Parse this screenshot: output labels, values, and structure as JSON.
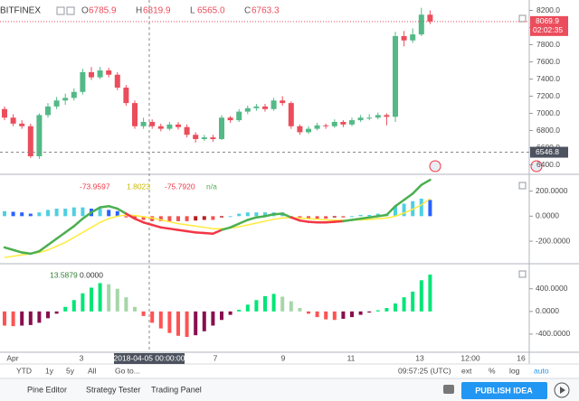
{
  "header": {
    "symbol": "BITFINEX",
    "ohlc": [
      {
        "label": "O",
        "value": "6785.9"
      },
      {
        "label": "H",
        "value": "6819.9"
      },
      {
        "label": "L",
        "value": "6565.0"
      },
      {
        "label": "C",
        "value": "6763.3"
      }
    ]
  },
  "price_chart": {
    "ylim": [
      6300,
      8300
    ],
    "yticks": [
      {
        "value": 8200,
        "label": "8200.0"
      },
      {
        "value": 8000,
        "label": "8000.0"
      },
      {
        "value": 7800,
        "label": "7800.0"
      },
      {
        "value": 7600,
        "label": "7600.0"
      },
      {
        "value": 7400,
        "label": "7400.0"
      },
      {
        "value": 7200,
        "label": "7200.0"
      },
      {
        "value": 7000,
        "label": "7000.0"
      },
      {
        "value": 6800,
        "label": "6800.0"
      },
      {
        "value": 6600,
        "label": "6600.0"
      },
      {
        "value": 6400,
        "label": "6400.0"
      }
    ],
    "up_color": "#53b987",
    "down_color": "#eb4d5c",
    "candles": [
      [
        7050,
        7080,
        6920,
        6950
      ],
      [
        6950,
        6990,
        6850,
        6880
      ],
      [
        6880,
        6920,
        6820,
        6850
      ],
      [
        6850,
        6880,
        6480,
        6500
      ],
      [
        6500,
        7000,
        6470,
        6980
      ],
      [
        6980,
        7120,
        6950,
        7080
      ],
      [
        7080,
        7190,
        7050,
        7150
      ],
      [
        7150,
        7230,
        7100,
        7180
      ],
      [
        7180,
        7290,
        7150,
        7250
      ],
      [
        7250,
        7520,
        7220,
        7480
      ],
      [
        7480,
        7540,
        7390,
        7420
      ],
      [
        7420,
        7540,
        7400,
        7500
      ],
      [
        7500,
        7530,
        7420,
        7450
      ],
      [
        7450,
        7480,
        7270,
        7300
      ],
      [
        7300,
        7330,
        7090,
        7120
      ],
      [
        7120,
        7150,
        6820,
        6850
      ],
      [
        6850,
        6950,
        6820,
        6900
      ],
      [
        6900,
        6930,
        6820,
        6850
      ],
      [
        6850,
        6880,
        6790,
        6820
      ],
      [
        6820,
        6900,
        6800,
        6870
      ],
      [
        6870,
        6900,
        6810,
        6840
      ],
      [
        6840,
        6870,
        6720,
        6750
      ],
      [
        6750,
        6780,
        6660,
        6700
      ],
      [
        6700,
        6750,
        6680,
        6720
      ],
      [
        6720,
        6750,
        6670,
        6700
      ],
      [
        6700,
        6980,
        6690,
        6950
      ],
      [
        6950,
        6970,
        6890,
        6920
      ],
      [
        6920,
        7050,
        6900,
        7020
      ],
      [
        7020,
        7090,
        6990,
        7060
      ],
      [
        7060,
        7110,
        7030,
        7080
      ],
      [
        7080,
        7110,
        7020,
        7050
      ],
      [
        7050,
        7180,
        7030,
        7150
      ],
      [
        7150,
        7200,
        7090,
        7120
      ],
      [
        7120,
        7140,
        6820,
        6850
      ],
      [
        6850,
        6870,
        6750,
        6780
      ],
      [
        6780,
        6850,
        6760,
        6820
      ],
      [
        6820,
        6890,
        6800,
        6860
      ],
      [
        6860,
        6880,
        6820,
        6850
      ],
      [
        6850,
        6930,
        6830,
        6900
      ],
      [
        6900,
        6920,
        6840,
        6870
      ],
      [
        6870,
        6950,
        6850,
        6920
      ],
      [
        6920,
        6980,
        6900,
        6950
      ],
      [
        6950,
        6990,
        6920,
        6950
      ],
      [
        6950,
        7010,
        6930,
        6980
      ],
      [
        6980,
        7000,
        6860,
        6960
      ],
      [
        6960,
        7950,
        6900,
        7900
      ],
      [
        7900,
        7960,
        7780,
        7850
      ],
      [
        7850,
        7990,
        7820,
        7920
      ],
      [
        7920,
        8230,
        7900,
        8150
      ],
      [
        8150,
        8200,
        8040,
        8070
      ]
    ],
    "last_price": 8069.9,
    "countdown": "02:02:35",
    "crosshair_price": 6546.8,
    "crosshair_date": "2018-04-05 00:00:00"
  },
  "macd_pane": {
    "ylim": [
      -380,
      320
    ],
    "yticks": [
      {
        "value": 200,
        "label": "200.0000"
      },
      {
        "value": 0,
        "label": "0.0000"
      },
      {
        "value": -200,
        "label": "-200.0000"
      }
    ],
    "legend": [
      "-73.9597",
      "1.8023",
      "-75.7920",
      "n/a"
    ],
    "line_up_color": "#4caf50",
    "line_down_color": "#f23645",
    "signal_color": "#ffeb3b",
    "hist_colors": {
      "up_rising": "#4dd0e1",
      "up_falling": "#2962ff",
      "down_falling": "#ef5350",
      "down_rising": "#b71c1c"
    },
    "line": [
      -250,
      -270,
      -290,
      -300,
      -280,
      -230,
      -180,
      -130,
      -80,
      -20,
      30,
      70,
      80,
      60,
      20,
      -20,
      -50,
      -70,
      -90,
      -100,
      -110,
      -120,
      -130,
      -135,
      -140,
      -110,
      -90,
      -60,
      -30,
      -10,
      0,
      15,
      20,
      -10,
      -35,
      -45,
      -50,
      -50,
      -45,
      -40,
      -30,
      -20,
      -10,
      0,
      10,
      80,
      130,
      180,
      250,
      290
    ],
    "signal": [
      -330,
      -320,
      -310,
      -300,
      -290,
      -270,
      -240,
      -210,
      -170,
      -130,
      -90,
      -50,
      -20,
      0,
      10,
      5,
      -5,
      -15,
      -30,
      -45,
      -60,
      -70,
      -80,
      -90,
      -100,
      -100,
      -95,
      -85,
      -70,
      -55,
      -40,
      -25,
      -15,
      -12,
      -15,
      -20,
      -25,
      -30,
      -32,
      -33,
      -32,
      -30,
      -26,
      -20,
      -15,
      0,
      25,
      55,
      90,
      140
    ],
    "hist": [
      40,
      35,
      30,
      20,
      30,
      50,
      60,
      60,
      70,
      70,
      60,
      60,
      50,
      40,
      -10,
      -20,
      -30,
      -40,
      -40,
      -40,
      -40,
      -40,
      -35,
      -30,
      -30,
      -10,
      0,
      20,
      30,
      30,
      30,
      30,
      30,
      -10,
      -20,
      -20,
      -20,
      -20,
      -10,
      -10,
      0,
      10,
      10,
      20,
      20,
      80,
      100,
      120,
      140,
      130
    ]
  },
  "momentum_pane": {
    "ylim": [
      -720,
      810
    ],
    "yticks": [
      {
        "value": 400,
        "label": "400.0000"
      },
      {
        "value": 0,
        "label": "0.0000"
      },
      {
        "value": -400,
        "label": "-400.0000"
      }
    ],
    "legend": [
      "13.5879",
      "0.0000"
    ],
    "hist_colors": {
      "up_rising": "#00e676",
      "up_falling": "#a5d6a7",
      "down_falling": "#ff5252",
      "down_rising": "#880e4f"
    },
    "hist": [
      -250,
      -260,
      -250,
      -240,
      -200,
      -120,
      -40,
      80,
      200,
      320,
      420,
      500,
      480,
      400,
      250,
      80,
      -80,
      -200,
      -300,
      -380,
      -430,
      -450,
      -420,
      -350,
      -250,
      -150,
      -60,
      30,
      120,
      200,
      270,
      310,
      260,
      180,
      60,
      -40,
      -100,
      -140,
      -150,
      -130,
      -100,
      -60,
      -20,
      20,
      60,
      140,
      250,
      350,
      550,
      650
    ]
  },
  "date_axis": [
    "Apr",
    "3",
    "7",
    "9",
    "11",
    "13",
    "12:00",
    "16"
  ],
  "range_bar": [
    "YTD",
    "1y",
    "5y",
    "All",
    "Go to..."
  ],
  "status": {
    "time": "09:57:25 (UTC)",
    "options": [
      "ext",
      "%",
      "log",
      "auto"
    ]
  },
  "tabs": [
    "Pine Editor",
    "Strategy Tester",
    "Trading Panel"
  ],
  "publish": "PUBLISH IDEA"
}
